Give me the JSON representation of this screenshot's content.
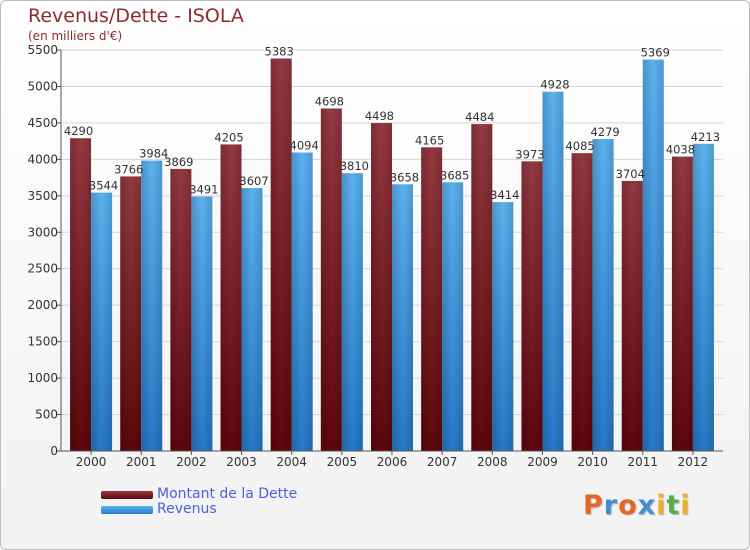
{
  "header": {
    "title": "Revenus/Dette - ISOLA",
    "subtitle": "(en milliers d'€)"
  },
  "colors": {
    "dette": "#6e0f17",
    "dette_light": "#953941",
    "revenus": "#2a7fcf",
    "revenus_light": "#5bb0ee",
    "text": "#8e2a34",
    "legend_text": "#4b5fe0"
  },
  "chart_data": {
    "type": "bar",
    "title": "Revenus/Dette - ISOLA",
    "subtitle": "(en milliers d'€)",
    "categories": [
      "2000",
      "2001",
      "2002",
      "2003",
      "2004",
      "2005",
      "2006",
      "2007",
      "2008",
      "2009",
      "2010",
      "2011",
      "2012"
    ],
    "series": [
      {
        "name": "Montant de la Dette",
        "values": [
          4290,
          3766,
          3869,
          4205,
          5383,
          4698,
          4498,
          4165,
          4484,
          3973,
          4085,
          3704,
          4038
        ]
      },
      {
        "name": "Revenus",
        "values": [
          3544,
          3984,
          3491,
          3607,
          4094,
          3810,
          3658,
          3685,
          3414,
          4928,
          4279,
          5369,
          4213
        ]
      }
    ],
    "ylim": [
      0,
      5500
    ],
    "yticks": [
      "0",
      "500",
      "1000",
      "1500",
      "2000",
      "2500",
      "3000",
      "3500",
      "4000",
      "4500",
      "5000",
      "5500"
    ],
    "grid": true,
    "legend": "bottom-left"
  },
  "legend": {
    "items": [
      {
        "label": "Montant de la Dette"
      },
      {
        "label": "Revenus"
      }
    ]
  },
  "logo": {
    "letters": [
      "P",
      "r",
      "o",
      "x",
      "i",
      "t",
      "i"
    ],
    "letter_colors": [
      "#e8652a",
      "#3f8fd2",
      "#e8652a",
      "#3f8fd2",
      "#e8b12a",
      "#56b04a",
      "#e8b12a"
    ]
  }
}
